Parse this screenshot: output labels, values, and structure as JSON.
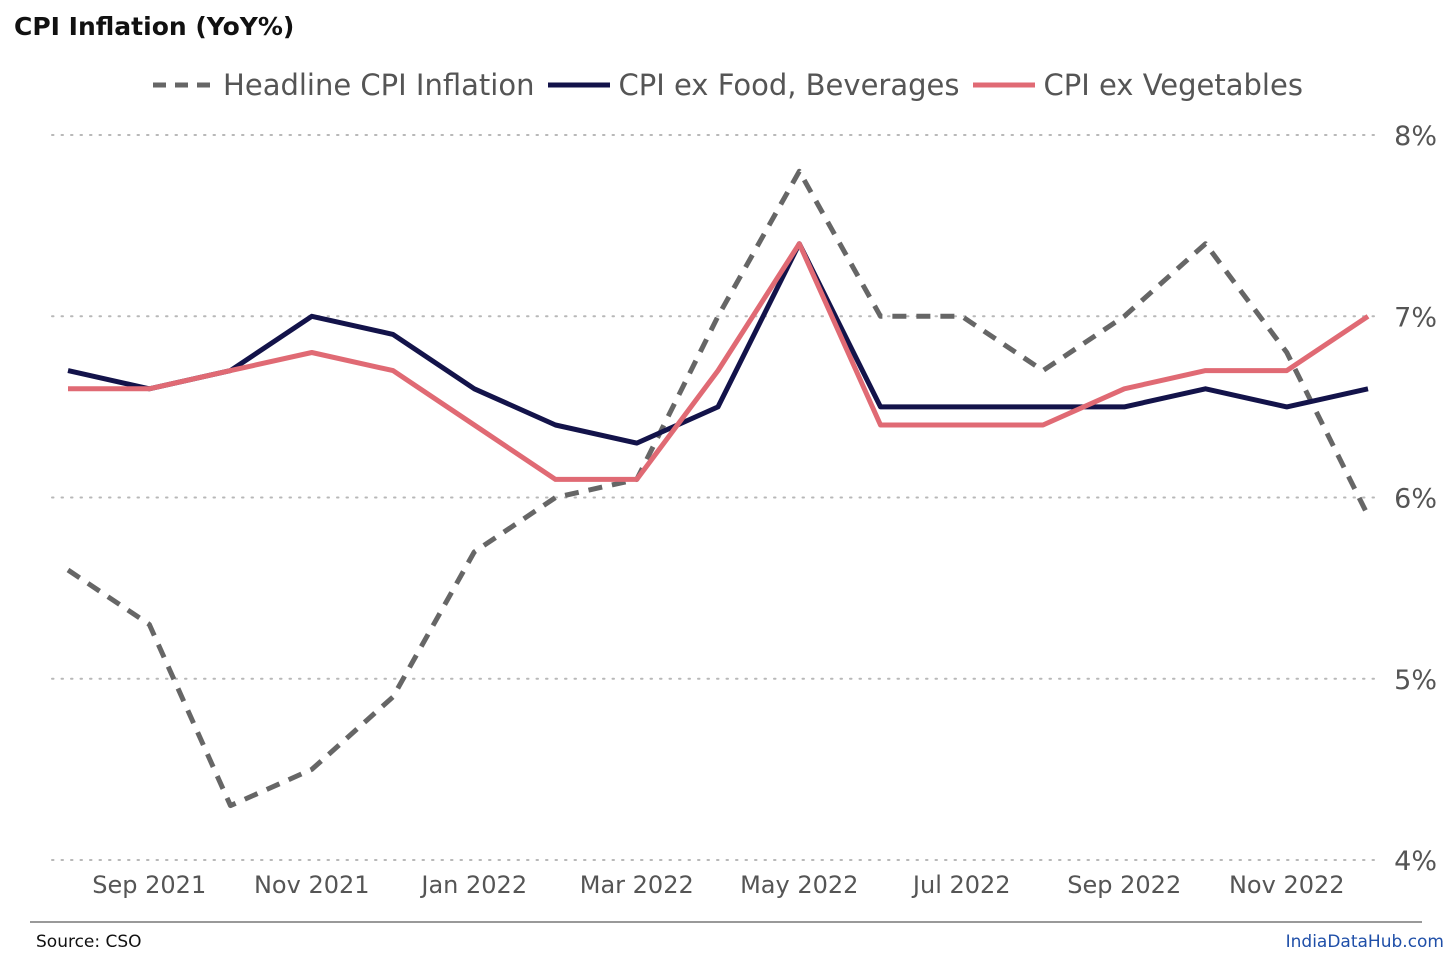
{
  "chart_data": {
    "type": "line",
    "title": "CPI Inflation (YoY%)",
    "x": [
      "Aug 2021",
      "Sep 2021",
      "Oct 2021",
      "Nov 2021",
      "Dec 2021",
      "Jan 2022",
      "Feb 2022",
      "Mar 2022",
      "Apr 2022",
      "May 2022",
      "Jun 2022",
      "Jul 2022",
      "Aug 2022",
      "Sep 2022",
      "Oct 2022",
      "Nov 2022",
      "Dec 2022"
    ],
    "x_tick_labels": [
      "Sep 2021",
      "Nov 2021",
      "Jan 2022",
      "Mar 2022",
      "May 2022",
      "Jul 2022",
      "Sep 2022",
      "Nov 2022"
    ],
    "ylim": [
      4,
      8
    ],
    "y_ticks": [
      "4%",
      "5%",
      "6%",
      "7%",
      "8%"
    ],
    "y_axis_side": "right",
    "grid": "horizontal dotted",
    "legend_position": "top",
    "series": [
      {
        "name": "Headline CPI Inflation",
        "style": "dashed",
        "color": "#666666",
        "values": [
          5.6,
          5.3,
          4.3,
          4.5,
          4.9,
          5.7,
          6.0,
          6.1,
          7.0,
          7.8,
          7.0,
          7.0,
          6.7,
          7.0,
          7.4,
          6.8,
          5.9
        ]
      },
      {
        "name": "CPI ex Food, Beverages",
        "style": "solid",
        "color": "#13134a",
        "values": [
          6.7,
          6.6,
          6.7,
          7.0,
          6.9,
          6.6,
          6.4,
          6.3,
          6.5,
          7.4,
          6.5,
          6.5,
          6.5,
          6.5,
          6.6,
          6.5,
          6.6
        ]
      },
      {
        "name": "CPI ex Vegetables",
        "style": "solid",
        "color": "#e06a74",
        "values": [
          6.6,
          6.6,
          6.7,
          6.8,
          6.7,
          6.4,
          6.1,
          6.1,
          6.7,
          7.4,
          6.4,
          6.4,
          6.4,
          6.6,
          6.7,
          6.7,
          7.0
        ]
      }
    ]
  },
  "footer": {
    "source": "Source: CSO",
    "brand": "IndiaDataHub.com"
  }
}
